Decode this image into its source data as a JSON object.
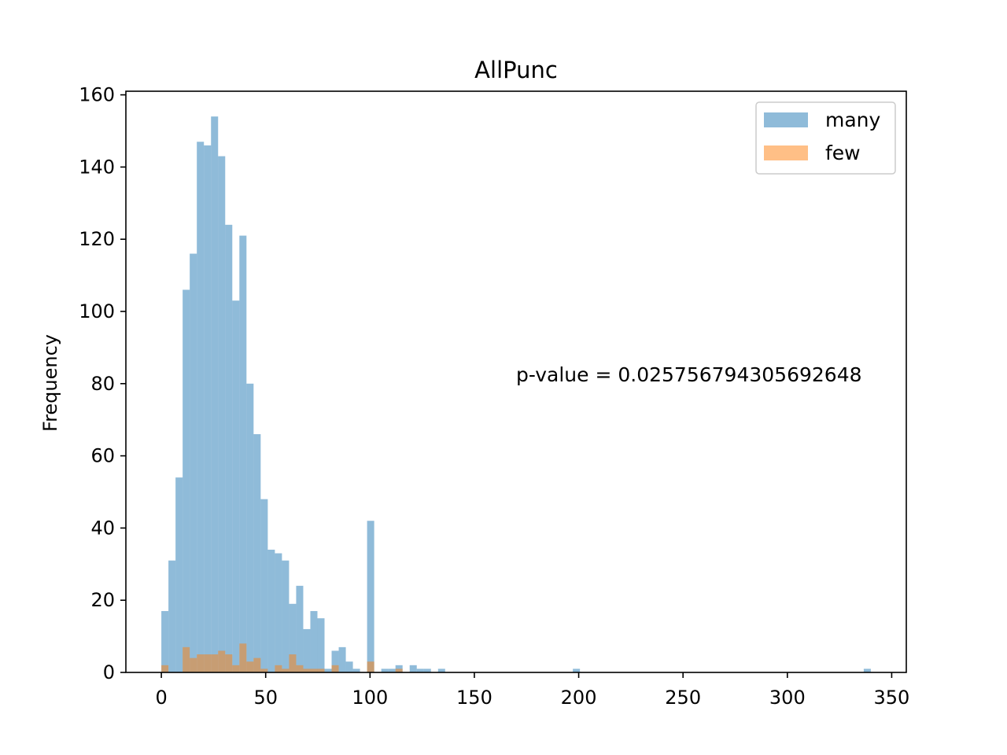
{
  "chart_data": {
    "type": "bar",
    "title": "AllPunc",
    "xlabel": "",
    "ylabel": "Frequency",
    "xlim": [
      -17,
      357
    ],
    "ylim": [
      0,
      161
    ],
    "bin_width": 3.4,
    "x_ticks": [
      0,
      50,
      100,
      150,
      200,
      250,
      300,
      350
    ],
    "y_ticks": [
      0,
      20,
      40,
      60,
      80,
      100,
      120,
      140,
      160
    ],
    "legend_position": "upper right",
    "grid": false,
    "annotation": "p-value = 0.025756794305692648",
    "series": [
      {
        "name": "many",
        "color": "#1f77b4",
        "opacity": 0.5,
        "bins": [
          {
            "x": 0.0,
            "count": 17
          },
          {
            "x": 3.4,
            "count": 31
          },
          {
            "x": 6.8,
            "count": 54
          },
          {
            "x": 10.2,
            "count": 106
          },
          {
            "x": 13.6,
            "count": 116
          },
          {
            "x": 17.0,
            "count": 147
          },
          {
            "x": 20.4,
            "count": 146
          },
          {
            "x": 23.8,
            "count": 154
          },
          {
            "x": 27.2,
            "count": 143
          },
          {
            "x": 30.6,
            "count": 124
          },
          {
            "x": 34.0,
            "count": 103
          },
          {
            "x": 37.4,
            "count": 121
          },
          {
            "x": 40.8,
            "count": 80
          },
          {
            "x": 44.2,
            "count": 66
          },
          {
            "x": 47.6,
            "count": 48
          },
          {
            "x": 51.0,
            "count": 34
          },
          {
            "x": 54.4,
            "count": 33
          },
          {
            "x": 57.8,
            "count": 31
          },
          {
            "x": 61.2,
            "count": 19
          },
          {
            "x": 64.6,
            "count": 24
          },
          {
            "x": 68.0,
            "count": 12
          },
          {
            "x": 71.4,
            "count": 17
          },
          {
            "x": 74.8,
            "count": 15
          },
          {
            "x": 78.2,
            "count": 1
          },
          {
            "x": 81.6,
            "count": 6
          },
          {
            "x": 85.0,
            "count": 7
          },
          {
            "x": 88.4,
            "count": 3
          },
          {
            "x": 91.8,
            "count": 1
          },
          {
            "x": 98.6,
            "count": 42
          },
          {
            "x": 105.4,
            "count": 1
          },
          {
            "x": 108.8,
            "count": 1
          },
          {
            "x": 112.2,
            "count": 2
          },
          {
            "x": 119.0,
            "count": 2
          },
          {
            "x": 122.4,
            "count": 1
          },
          {
            "x": 125.8,
            "count": 1
          },
          {
            "x": 132.6,
            "count": 1
          },
          {
            "x": 197.2,
            "count": 1
          },
          {
            "x": 336.6,
            "count": 1
          }
        ]
      },
      {
        "name": "few",
        "color": "#ff7f0e",
        "opacity": 0.5,
        "bins": [
          {
            "x": 0.0,
            "count": 2
          },
          {
            "x": 10.2,
            "count": 7
          },
          {
            "x": 13.6,
            "count": 4
          },
          {
            "x": 17.0,
            "count": 5
          },
          {
            "x": 20.4,
            "count": 5
          },
          {
            "x": 23.8,
            "count": 5
          },
          {
            "x": 27.2,
            "count": 6
          },
          {
            "x": 30.6,
            "count": 5
          },
          {
            "x": 34.0,
            "count": 2
          },
          {
            "x": 37.4,
            "count": 8
          },
          {
            "x": 40.8,
            "count": 3
          },
          {
            "x": 44.2,
            "count": 4
          },
          {
            "x": 47.6,
            "count": 1
          },
          {
            "x": 54.4,
            "count": 2
          },
          {
            "x": 57.8,
            "count": 1
          },
          {
            "x": 61.2,
            "count": 5
          },
          {
            "x": 64.6,
            "count": 2
          },
          {
            "x": 68.0,
            "count": 1
          },
          {
            "x": 71.4,
            "count": 1
          },
          {
            "x": 74.8,
            "count": 1
          },
          {
            "x": 81.6,
            "count": 2
          },
          {
            "x": 98.6,
            "count": 3
          },
          {
            "x": 112.2,
            "count": 1
          }
        ]
      }
    ]
  }
}
